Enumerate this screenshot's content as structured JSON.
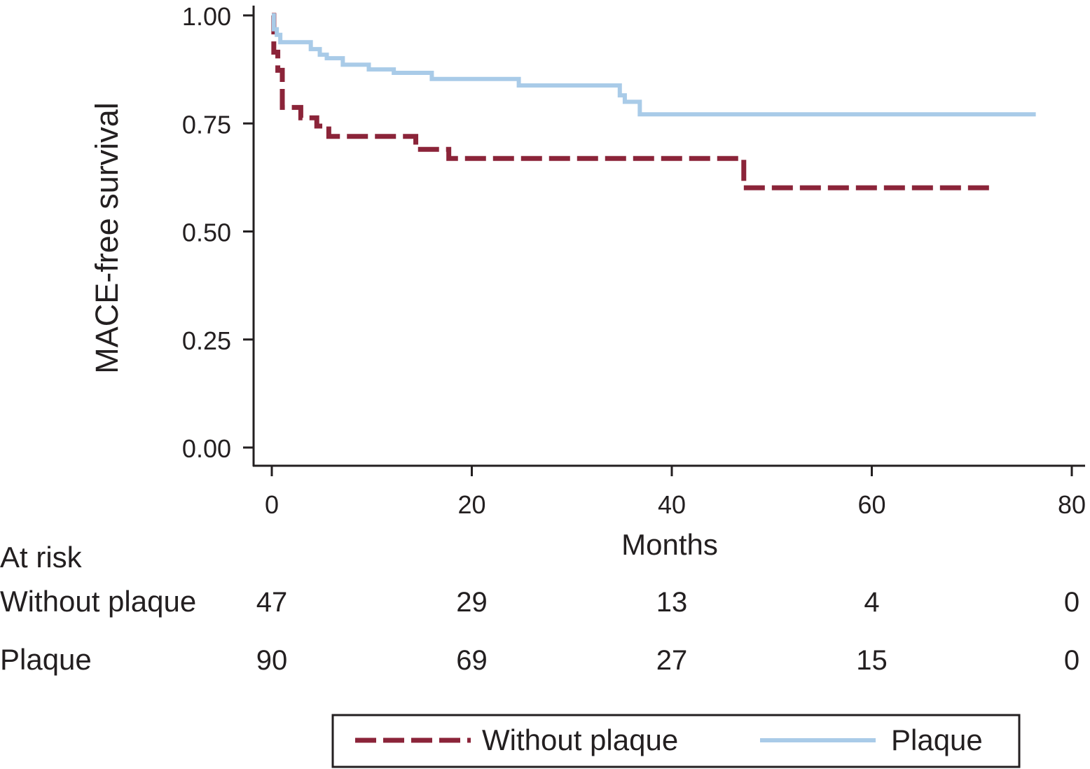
{
  "chart_data": {
    "type": "line",
    "subtype": "kaplan-meier-step",
    "ylabel": "MACE-free survival",
    "xlabel": "Months",
    "xlim": [
      0,
      80
    ],
    "ylim": [
      0,
      1
    ],
    "xticks": [
      "0",
      "20",
      "40",
      "60",
      "80"
    ],
    "yticks": [
      "0.00",
      "0.25",
      "0.50",
      "0.75",
      "1.00"
    ],
    "grid": false,
    "legend_position": "bottom",
    "series": [
      {
        "name": "Without plaque",
        "color": "#8b2439",
        "style": "dashed",
        "x": [
          0,
          0.2,
          0.6,
          1.05,
          2.9,
          4.5,
          5.7,
          14.4,
          17.7,
          47.2,
          71.9
        ],
        "y": [
          1.0,
          0.915,
          0.873,
          0.787,
          0.763,
          0.744,
          0.72,
          0.69,
          0.669,
          0.601,
          0.601
        ]
      },
      {
        "name": "Plaque",
        "color": "#a9cbe8",
        "style": "solid",
        "x": [
          0,
          0.2,
          0.5,
          0.85,
          3.9,
          4.8,
          5.5,
          7.1,
          9.7,
          12.2,
          16.0,
          24.7,
          34.8,
          35.3,
          36.8,
          76.4
        ],
        "y": [
          1.0,
          0.968,
          0.955,
          0.938,
          0.922,
          0.909,
          0.901,
          0.886,
          0.875,
          0.867,
          0.853,
          0.838,
          0.815,
          0.8,
          0.771,
          0.771
        ]
      }
    ],
    "at_risk": {
      "title": "At risk",
      "times": [
        0,
        20,
        40,
        60,
        80
      ],
      "rows": [
        {
          "label": "Without plaque",
          "values": [
            "47",
            "29",
            "13",
            "4",
            "0"
          ]
        },
        {
          "label": "Plaque",
          "values": [
            "90",
            "69",
            "27",
            "15",
            "0"
          ]
        }
      ]
    },
    "legend": [
      "Without plaque",
      "Plaque"
    ]
  }
}
